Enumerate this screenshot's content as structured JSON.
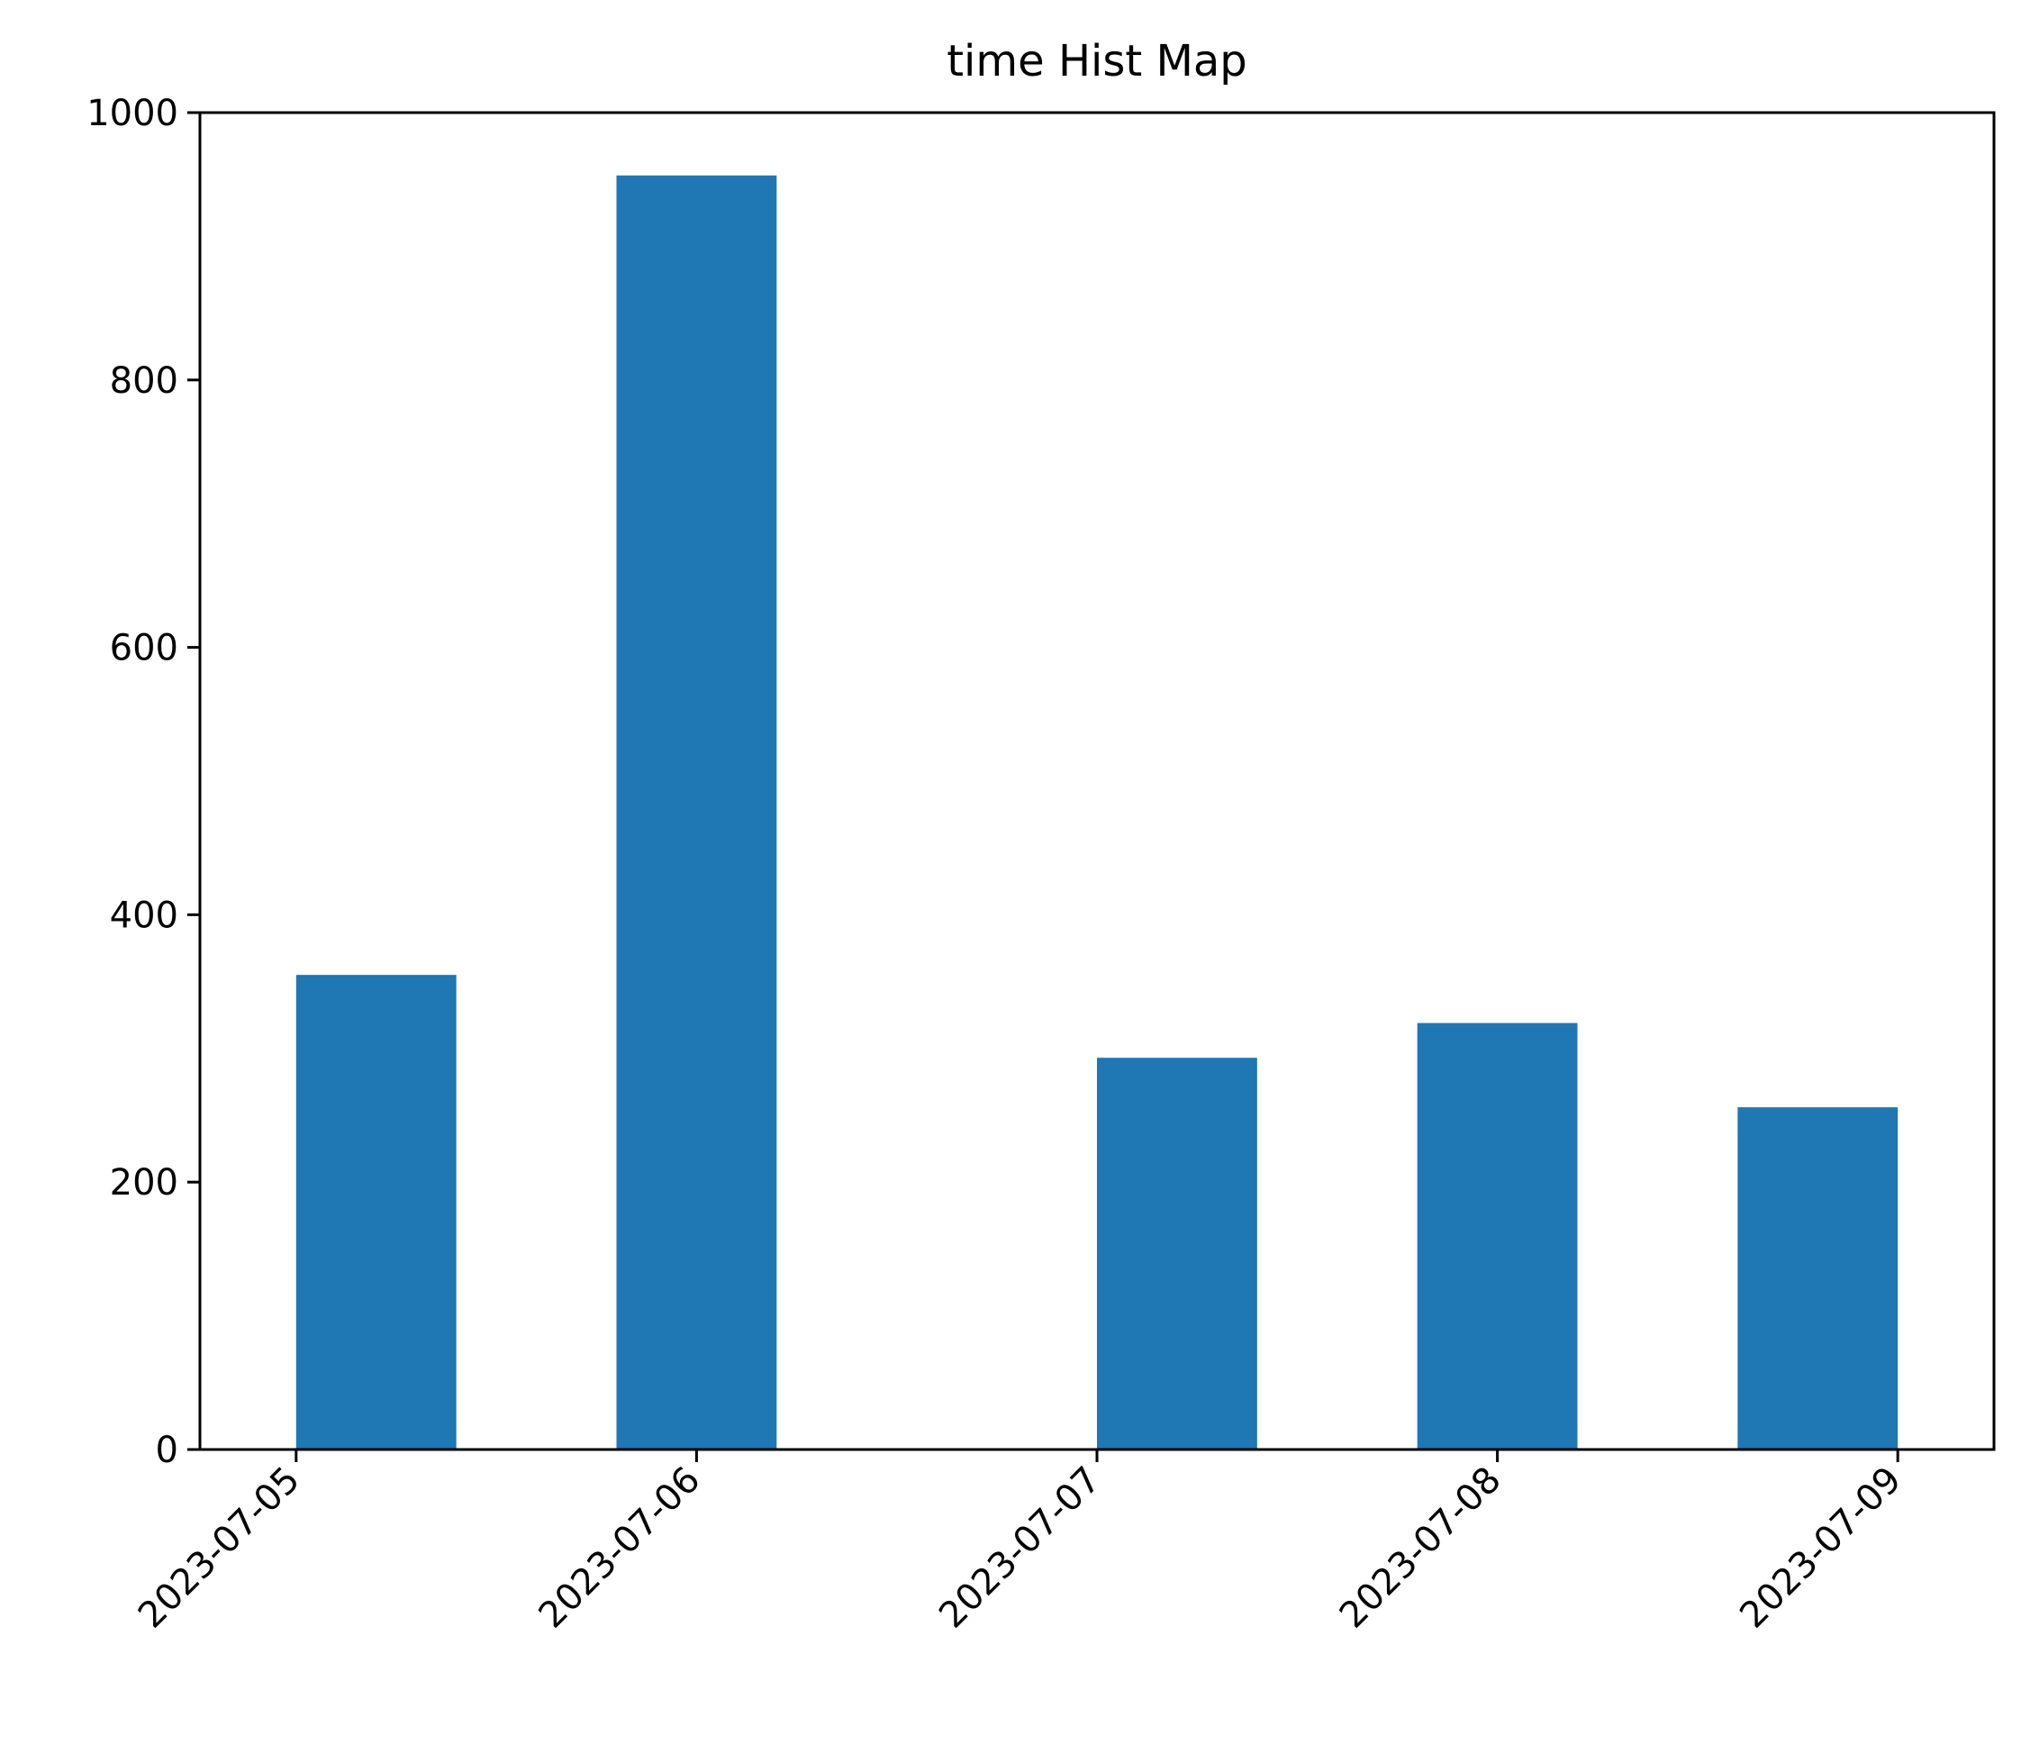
{
  "chart_data": {
    "type": "bar",
    "title": "time Hist Map",
    "xlabel": "",
    "ylabel": "",
    "x_ticks": [
      "2023-07-05",
      "2023-07-06",
      "2023-07-07",
      "2023-07-08",
      "2023-07-09"
    ],
    "bins": [
      {
        "start": "2023-07-05 00:00",
        "end": "2023-07-05 09:36",
        "count": 355
      },
      {
        "start": "2023-07-05 19:12",
        "end": "2023-07-06 04:48",
        "count": 953
      },
      {
        "start": "2023-07-07 00:00",
        "end": "2023-07-07 09:36",
        "count": 293
      },
      {
        "start": "2023-07-07 19:12",
        "end": "2023-07-08 04:48",
        "count": 319
      },
      {
        "start": "2023-07-08 14:24",
        "end": "2023-07-09 00:00",
        "count": 256
      }
    ],
    "x_range": [
      "2023-07-04 18:14",
      "2023-07-09 05:46"
    ],
    "ylim": [
      0,
      1000
    ],
    "y_ticks": [
      0,
      200,
      400,
      600,
      800,
      1000
    ],
    "grid": false,
    "bar_color": "#1f77b4"
  }
}
